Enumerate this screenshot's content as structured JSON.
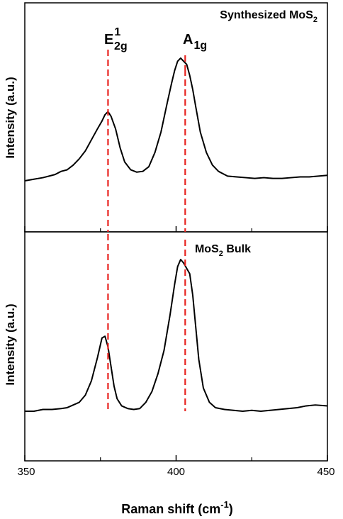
{
  "chart_data": [
    {
      "type": "line",
      "panel": "top",
      "annotation": {
        "base": "Synthesized MoS",
        "sub": "2"
      },
      "ylabel": "Intensity (a.u.)",
      "xlim": [
        350,
        450
      ],
      "ylim": [
        0,
        1
      ],
      "grid": false,
      "peak_markers": [
        {
          "label": {
            "base": "E",
            "sup": "1",
            "sub": "2g"
          },
          "x": 377.5,
          "color": "#e8231f"
        },
        {
          "label": {
            "base": "A",
            "sub": "1g"
          },
          "x": 403,
          "color": "#e8231f"
        }
      ],
      "series": [
        {
          "color": "#000000",
          "x": [
            350,
            353,
            356,
            358,
            360,
            362,
            364,
            366,
            368,
            370,
            372,
            374,
            375.5,
            376.5,
            377.5,
            378.5,
            380,
            381.5,
            383,
            385,
            387,
            389,
            391,
            393,
            395,
            397,
            398.5,
            399.5,
            400.5,
            401.5,
            402.5,
            403.5,
            404.5,
            405.5,
            406.5,
            408,
            410,
            412,
            414,
            417,
            420,
            423,
            426,
            429,
            432,
            435,
            438,
            441,
            444,
            447,
            450
          ],
          "y": [
            0.24,
            0.25,
            0.26,
            0.27,
            0.28,
            0.3,
            0.31,
            0.34,
            0.38,
            0.43,
            0.5,
            0.57,
            0.62,
            0.66,
            0.68,
            0.65,
            0.57,
            0.45,
            0.36,
            0.31,
            0.295,
            0.3,
            0.33,
            0.42,
            0.55,
            0.73,
            0.86,
            0.94,
            1.0,
            1.02,
            1.0,
            0.98,
            0.91,
            0.82,
            0.71,
            0.55,
            0.42,
            0.34,
            0.3,
            0.27,
            0.265,
            0.26,
            0.255,
            0.26,
            0.255,
            0.255,
            0.26,
            0.265,
            0.265,
            0.27,
            0.275
          ]
        }
      ]
    },
    {
      "type": "line",
      "panel": "bottom",
      "annotation": {
        "base": "MoS",
        "sub": "2",
        "tail": " Bulk"
      },
      "ylabel": "Intensity (a.u.)",
      "xlabel": {
        "base": "Raman shift (cm",
        "sup": "-1",
        "tail": ")"
      },
      "xlim": [
        350,
        450
      ],
      "xticks": [
        350,
        400,
        450
      ],
      "minor_xticks": [
        375,
        425
      ],
      "ylim": [
        0,
        1
      ],
      "grid": false,
      "series": [
        {
          "color": "#000000",
          "x": [
            350,
            353,
            356,
            359,
            362,
            364,
            366,
            368,
            370,
            372,
            374,
            375.5,
            376.5,
            377.5,
            378.5,
            379.5,
            380.5,
            382,
            384,
            386,
            388,
            390,
            392,
            394,
            396,
            398,
            399.5,
            400.5,
            401.5,
            402.5,
            403.5,
            404.5,
            405.5,
            406.5,
            407.5,
            409,
            411,
            413,
            416,
            419,
            422,
            425,
            428,
            431,
            434,
            437,
            440,
            443,
            446,
            450
          ],
          "y": [
            0.19,
            0.19,
            0.2,
            0.2,
            0.205,
            0.21,
            0.225,
            0.24,
            0.28,
            0.36,
            0.49,
            0.6,
            0.61,
            0.55,
            0.44,
            0.33,
            0.26,
            0.22,
            0.205,
            0.2,
            0.205,
            0.24,
            0.3,
            0.4,
            0.53,
            0.73,
            0.9,
            1.0,
            1.04,
            1.02,
            0.99,
            0.96,
            0.84,
            0.66,
            0.48,
            0.32,
            0.24,
            0.21,
            0.2,
            0.195,
            0.19,
            0.195,
            0.19,
            0.195,
            0.2,
            0.205,
            0.21,
            0.22,
            0.225,
            0.22
          ]
        }
      ]
    }
  ]
}
